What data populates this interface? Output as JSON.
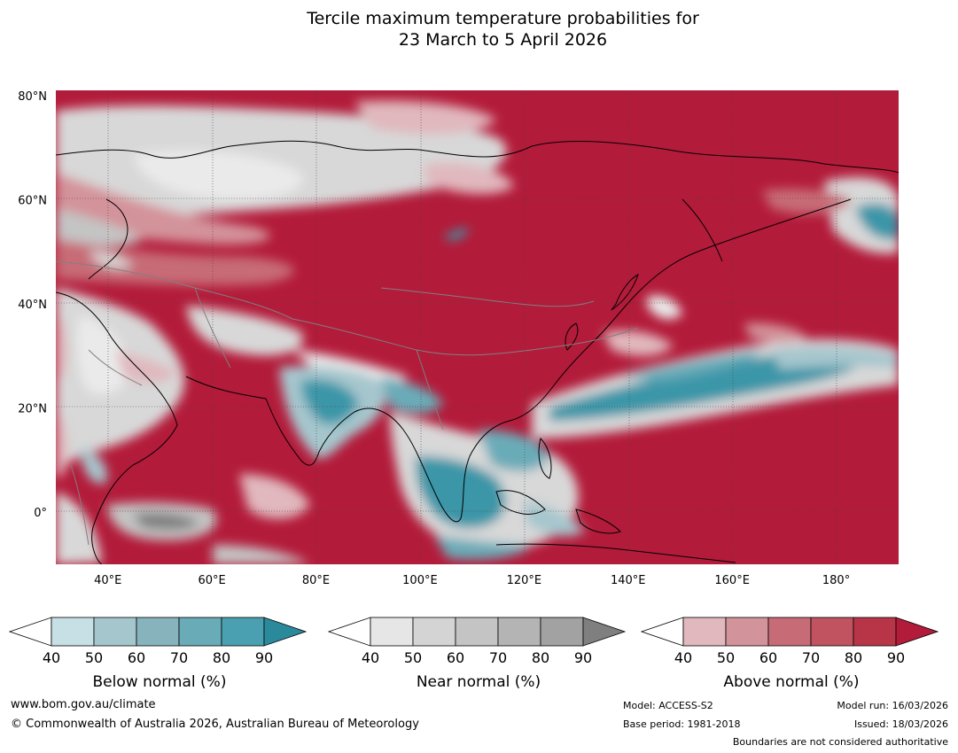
{
  "title": {
    "line1": "Tercile maximum temperature probabilities for",
    "line2": "23 March to 5 April 2026"
  },
  "map": {
    "lat_labels": [
      "80°N",
      "60°N",
      "40°N",
      "20°N",
      "0°"
    ],
    "lon_labels": [
      "40°E",
      "60°E",
      "80°E",
      "100°E",
      "120°E",
      "140°E",
      "160°E",
      "180°"
    ],
    "lat_values": [
      80,
      60,
      40,
      20,
      0
    ],
    "lon_values": [
      40,
      60,
      80,
      100,
      120,
      140,
      160,
      180
    ],
    "extent": {
      "lon_min": 30,
      "lon_max": 192,
      "lat_min": -10,
      "lat_max": 81
    }
  },
  "colorbars": [
    {
      "name": "below-normal",
      "label": "Below normal (%)",
      "ticks": [
        "40",
        "50",
        "60",
        "70",
        "80",
        "90"
      ],
      "colors": [
        "#ffffff",
        "#c6e0e6",
        "#a6c6cd",
        "#87b3bd",
        "#6aabb8",
        "#4aa0b0",
        "#2a8a9c"
      ]
    },
    {
      "name": "near-normal",
      "label": "Near normal (%)",
      "ticks": [
        "40",
        "50",
        "60",
        "70",
        "80",
        "90"
      ],
      "colors": [
        "#ffffff",
        "#e6e6e6",
        "#d4d4d4",
        "#c4c4c4",
        "#b4b4b4",
        "#a2a2a2",
        "#7f7f7f"
      ]
    },
    {
      "name": "above-normal",
      "label": "Above normal (%)",
      "ticks": [
        "40",
        "50",
        "60",
        "70",
        "80",
        "90"
      ],
      "colors": [
        "#ffffff",
        "#e0b8bd",
        "#d3939a",
        "#c76c77",
        "#c0535f",
        "#b83548",
        "#b31b3a"
      ]
    }
  ],
  "footer": {
    "website": "www.bom.gov.au/climate",
    "copyright": "© Commonwealth of Australia 2026, Australian Bureau of Meteorology",
    "model": "Model: ACCESS-S2",
    "base_period": "Base period: 1981-2018",
    "model_run": "Model run: 16/03/2026",
    "issued": "Issued: 18/03/2026",
    "disclaimer": "Boundaries are not considered authoritative"
  },
  "colors": {
    "above_strong": "#b31b3a",
    "above_mid": "#c76c77",
    "above_weak": "#e0b8bd",
    "near": "#d8d8d8",
    "near_light": "#eaeaea",
    "below_light": "#a6c6cd",
    "below_strong": "#3a96a8"
  }
}
